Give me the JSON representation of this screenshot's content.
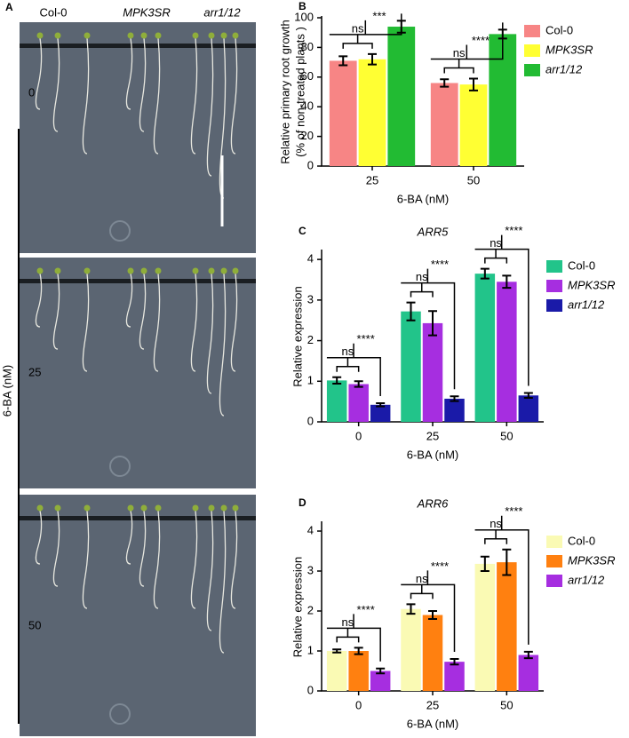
{
  "photo_panel": {
    "label": "A",
    "columns": [
      "Col-0",
      "MPK3SR",
      "arr1/12"
    ],
    "rows": [
      "0",
      "25",
      "50"
    ],
    "axis_label": "6-BA (nM)"
  },
  "chart_data": [
    {
      "type": "bar",
      "panel": "B",
      "ylabel": [
        "Relative primary root growth",
        "(% of non-treated plants )"
      ],
      "xlabel": "6-BA (nM)",
      "categories": [
        "25",
        "50"
      ],
      "ylim": [
        0,
        100
      ],
      "yticks": [
        0,
        20,
        40,
        60,
        80,
        100
      ],
      "series": [
        {
          "name": "Col-0",
          "color": "#f78585",
          "values": [
            71,
            56
          ],
          "errors": [
            3,
            2.5
          ]
        },
        {
          "name": "MPK3SR",
          "color": "#ffff33",
          "values": [
            72,
            55
          ],
          "errors": [
            3.5,
            4
          ]
        },
        {
          "name": "arr1/12",
          "color": "#22bb33",
          "values": [
            94,
            89
          ],
          "errors": [
            4,
            3
          ]
        }
      ],
      "significance": [
        [
          "ns",
          "***"
        ],
        [
          "ns",
          "****"
        ]
      ]
    },
    {
      "type": "bar",
      "panel": "C",
      "title": "ARR5",
      "ylabel": [
        "Relative expression"
      ],
      "xlabel": "6-BA (nM)",
      "categories": [
        "0",
        "25",
        "50"
      ],
      "ylim": [
        0,
        4.2
      ],
      "yticks": [
        0,
        1,
        2,
        3,
        4
      ],
      "series": [
        {
          "name": "Col-0",
          "color": "#22c48a",
          "values": [
            1.02,
            2.72,
            3.65
          ],
          "errors": [
            0.08,
            0.22,
            0.12
          ]
        },
        {
          "name": "MPK3SR",
          "color": "#a62ee0",
          "values": [
            0.93,
            2.43,
            3.45
          ],
          "errors": [
            0.07,
            0.3,
            0.15
          ]
        },
        {
          "name": "arr1/12",
          "color": "#1a1aa8",
          "values": [
            0.42,
            0.57,
            0.65
          ],
          "errors": [
            0.04,
            0.06,
            0.06
          ]
        }
      ],
      "significance": [
        [
          "ns",
          "****"
        ],
        [
          "ns",
          "****"
        ],
        [
          "ns",
          "****"
        ]
      ]
    },
    {
      "type": "bar",
      "panel": "D",
      "title": "ARR6",
      "ylabel": [
        "Relative expression"
      ],
      "xlabel": "6-BA (nM)",
      "categories": [
        "0",
        "25",
        "50"
      ],
      "ylim": [
        0,
        4.2
      ],
      "yticks": [
        0,
        1,
        2,
        3,
        4
      ],
      "series": [
        {
          "name": "Col-0",
          "color": "#fafab4",
          "values": [
            1.0,
            2.05,
            3.18
          ],
          "errors": [
            0.04,
            0.12,
            0.18
          ]
        },
        {
          "name": "MPK3SR",
          "color": "#ff8010",
          "values": [
            1.0,
            1.9,
            3.22
          ],
          "errors": [
            0.08,
            0.1,
            0.32
          ]
        },
        {
          "name": "arr1/12",
          "color": "#a62ee0",
          "values": [
            0.5,
            0.73,
            0.9
          ],
          "errors": [
            0.06,
            0.07,
            0.08
          ]
        }
      ],
      "significance": [
        [
          "ns",
          "****"
        ],
        [
          "ns",
          "****"
        ],
        [
          "ns",
          "****"
        ]
      ]
    }
  ]
}
